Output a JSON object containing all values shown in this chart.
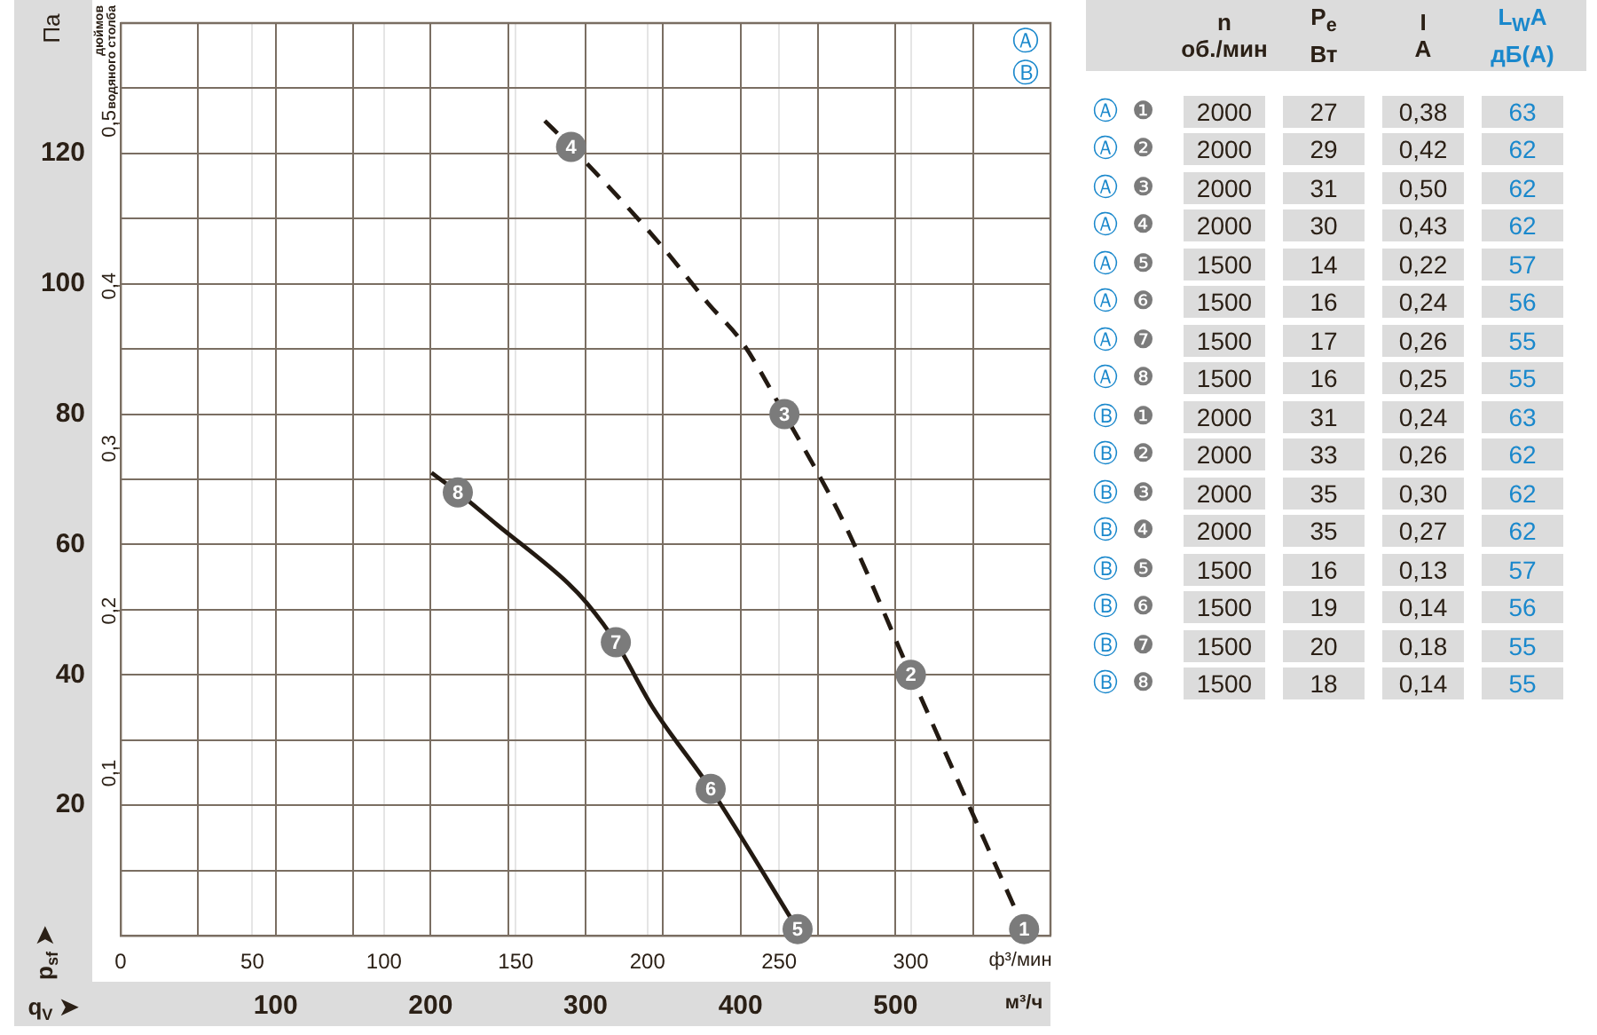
{
  "chart_data": [
    {
      "type": "line",
      "ylabel": "Па",
      "y2label": "дюймов\nводяного столба",
      "xlabel": "ф³/мин",
      "x2label": "м³/ч",
      "xlim": [
        0,
        353
      ],
      "xticks": [
        0,
        50,
        100,
        150,
        200,
        250,
        300
      ],
      "x2lim": [
        0,
        600
      ],
      "x2ticks": [
        {
          "value": 50,
          "label": null
        },
        100,
        {
          "value": 150,
          "label": null
        },
        200,
        {
          "value": 250,
          "label": null
        },
        300,
        {
          "value": 350,
          "label": null
        },
        400,
        {
          "value": 450,
          "label": null
        },
        500,
        {
          "value": 550,
          "label": null
        }
      ],
      "ylim": [
        0,
        140
      ],
      "yticks": [
        {
          "value": 10,
          "label": null
        },
        20,
        {
          "value": 30,
          "label": null
        },
        40,
        {
          "value": 50,
          "label": null
        },
        60,
        {
          "value": 70,
          "label": null
        },
        80,
        {
          "value": 90,
          "label": null
        },
        100,
        {
          "value": 110,
          "label": null
        },
        120,
        {
          "value": 130,
          "label": null
        }
      ],
      "y2lim": [
        0,
        0.562
      ],
      "y2ticks": [
        {
          "value": 0.1,
          "label": "0,1"
        },
        {
          "value": 0.2,
          "label": "0,2"
        },
        {
          "value": 0.3,
          "label": "0,3"
        },
        {
          "value": 0.4,
          "label": "0,4"
        },
        {
          "value": 0.5,
          "label": "0,5"
        }
      ],
      "grid": true,
      "series": [
        {
          "color": "#231a12",
          "line_style": "dashed",
          "x": [
            161,
            171,
            205,
            223,
            236,
            252,
            275,
            300,
            343
          ],
          "values": [
            125,
            121,
            106,
            97,
            91,
            80,
            63,
            40,
            1
          ]
        },
        {
          "color": "#231a12",
          "line_style": "solid",
          "x": [
            118,
            128,
            143,
            170,
            177,
            188,
            202,
            224,
            257
          ],
          "values": [
            71,
            68,
            63,
            54,
            51,
            45,
            35,
            22.5,
            1
          ]
        }
      ],
      "annotations": [
        "Ⓐ",
        "Ⓑ",
        "p$_{sf}$ ➤",
        "q$_{V}$ ➤",
        {
          "text": "1",
          "x": 343,
          "y": 1
        },
        {
          "text": "2",
          "x": 300,
          "y": 40
        },
        {
          "text": "3",
          "x": 252,
          "y": 80
        },
        {
          "text": "4",
          "x": 171,
          "y": 121
        },
        {
          "text": "5",
          "x": 257,
          "y": 1
        },
        {
          "text": "6",
          "x": 224,
          "y": 22.5
        },
        {
          "text": "7",
          "x": 188,
          "y": 45
        },
        {
          "text": "8",
          "x": 128,
          "y": 68
        }
      ]
    },
    {
      "type": "heatmap",
      "color": "#dcdcdc",
      "categories": [
        "n\nоб./мин",
        "P$_{e}$\nВт",
        "I\nA",
        "L$_{W}$A\nдБ(A)"
      ],
      "y_categories": [
        "Ⓐ ❶",
        "Ⓐ ❷",
        "Ⓐ ❸",
        "Ⓐ ❹",
        "Ⓐ ❺",
        "Ⓐ ❻",
        "Ⓐ ❼",
        "Ⓐ ❽",
        "Ⓑ ❶",
        "Ⓑ ❷",
        "Ⓑ ❸",
        "Ⓑ ❹",
        "Ⓑ ❺",
        "Ⓑ ❻",
        "Ⓑ ❼",
        "Ⓑ ❽"
      ],
      "cells": [
        [
          2000,
          27,
          0.38,
          63
        ],
        [
          2000,
          29,
          0.42,
          62
        ],
        [
          2000,
          31,
          0.5,
          62
        ],
        [
          2000,
          30,
          0.43,
          62
        ],
        [
          1500,
          14,
          0.22,
          57
        ],
        [
          1500,
          16,
          0.24,
          56
        ],
        [
          1500,
          17,
          0.26,
          55
        ],
        [
          1500,
          16,
          0.25,
          55
        ],
        [
          2000,
          31,
          0.24,
          63
        ],
        [
          2000,
          33,
          0.26,
          62
        ],
        [
          2000,
          35,
          0.3,
          62
        ],
        [
          2000,
          35,
          0.27,
          62
        ],
        [
          1500,
          16,
          0.13,
          57
        ],
        [
          1500,
          19,
          0.14,
          56
        ],
        [
          1500,
          20,
          0.18,
          55
        ],
        [
          1500,
          18,
          0.14,
          55
        ]
      ],
      "cell_labels": [
        [
          "2000",
          "27",
          "0,38",
          "63"
        ],
        [
          "2000",
          "29",
          "0,42",
          "62"
        ],
        [
          "2000",
          "31",
          "0,50",
          "62"
        ],
        [
          "2000",
          "30",
          "0,43",
          "62"
        ],
        [
          "1500",
          "14",
          "0,22",
          "57"
        ],
        [
          "1500",
          "16",
          "0,24",
          "56"
        ],
        [
          "1500",
          "17",
          "0,26",
          "55"
        ],
        [
          "1500",
          "16",
          "0,25",
          "55"
        ],
        [
          "2000",
          "31",
          "0,24",
          "63"
        ],
        [
          "2000",
          "33",
          "0,26",
          "62"
        ],
        [
          "2000",
          "35",
          "0,30",
          "62"
        ],
        [
          "2000",
          "35",
          "0,27",
          "62"
        ],
        [
          "1500",
          "16",
          "0,13",
          "57"
        ],
        [
          "1500",
          "19",
          "0,14",
          "56"
        ],
        [
          "1500",
          "20",
          "0,18",
          "55"
        ],
        [
          "1500",
          "18",
          "0,14",
          "55"
        ]
      ]
    }
  ]
}
